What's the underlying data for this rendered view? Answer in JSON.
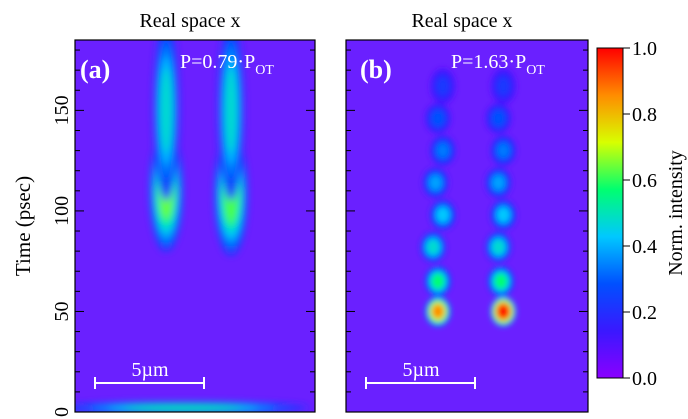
{
  "chart_data": [
    {
      "type": "heatmap",
      "panel_label": "(a)",
      "title": "Real space x",
      "power_label": {
        "prefix": "P=0.79·P",
        "subscript": "OT"
      },
      "ylabel": "Time (psec)",
      "ylim": [
        0,
        185
      ],
      "yticks": [
        0,
        50,
        100,
        150
      ],
      "scale_bar": "5µm",
      "intensity_peaks": [
        {
          "x_frac": 0.38,
          "time": 110,
          "intensity": 0.62,
          "sx": 0.045,
          "st": 20
        },
        {
          "x_frac": 0.65,
          "time": 108,
          "intensity": 0.6,
          "sx": 0.045,
          "st": 20
        },
        {
          "x_frac": 0.38,
          "time": 150,
          "intensity": 0.45,
          "sx": 0.035,
          "st": 30
        },
        {
          "x_frac": 0.65,
          "time": 150,
          "intensity": 0.45,
          "sx": 0.035,
          "st": 30
        },
        {
          "x_frac": 0.45,
          "time": 2,
          "intensity": 0.5,
          "sx": 0.35,
          "st": 2
        }
      ]
    },
    {
      "type": "heatmap",
      "panel_label": "(b)",
      "title": "Real space x",
      "power_label": {
        "prefix": "P=1.63·P",
        "subscript": "OT"
      },
      "ylim": [
        0,
        185
      ],
      "yticks": [
        0,
        50,
        100,
        150
      ],
      "scale_bar": "5µm",
      "intensity_peaks": [
        {
          "x_frac": 0.38,
          "time": 50,
          "intensity": 0.85,
          "sx": 0.035,
          "st": 5
        },
        {
          "x_frac": 0.65,
          "time": 50,
          "intensity": 1.0,
          "sx": 0.035,
          "st": 5
        },
        {
          "x_frac": 0.38,
          "time": 65,
          "intensity": 0.55,
          "sx": 0.035,
          "st": 5
        },
        {
          "x_frac": 0.64,
          "time": 65,
          "intensity": 0.55,
          "sx": 0.035,
          "st": 5
        },
        {
          "x_frac": 0.36,
          "time": 82,
          "intensity": 0.45,
          "sx": 0.035,
          "st": 5
        },
        {
          "x_frac": 0.63,
          "time": 82,
          "intensity": 0.45,
          "sx": 0.035,
          "st": 5
        },
        {
          "x_frac": 0.4,
          "time": 98,
          "intensity": 0.4,
          "sx": 0.035,
          "st": 5
        },
        {
          "x_frac": 0.65,
          "time": 98,
          "intensity": 0.4,
          "sx": 0.035,
          "st": 5
        },
        {
          "x_frac": 0.37,
          "time": 114,
          "intensity": 0.35,
          "sx": 0.035,
          "st": 5
        },
        {
          "x_frac": 0.63,
          "time": 114,
          "intensity": 0.35,
          "sx": 0.035,
          "st": 5
        },
        {
          "x_frac": 0.4,
          "time": 130,
          "intensity": 0.3,
          "sx": 0.035,
          "st": 5
        },
        {
          "x_frac": 0.65,
          "time": 130,
          "intensity": 0.3,
          "sx": 0.035,
          "st": 5
        },
        {
          "x_frac": 0.38,
          "time": 146,
          "intensity": 0.25,
          "sx": 0.035,
          "st": 5
        },
        {
          "x_frac": 0.63,
          "time": 146,
          "intensity": 0.25,
          "sx": 0.035,
          "st": 5
        },
        {
          "x_frac": 0.4,
          "time": 162,
          "intensity": 0.18,
          "sx": 0.035,
          "st": 6
        },
        {
          "x_frac": 0.65,
          "time": 162,
          "intensity": 0.18,
          "sx": 0.035,
          "st": 6
        }
      ]
    }
  ],
  "colorbar": {
    "label": "Norm. intensity",
    "range": [
      0.0,
      1.0
    ],
    "ticks": [
      "0.0",
      "0.2",
      "0.4",
      "0.6",
      "0.8",
      "1.0"
    ],
    "colors": [
      "#8a00ff",
      "#3a18ff",
      "#0050ff",
      "#00c8ff",
      "#00ff70",
      "#d8ff00",
      "#ff8c00",
      "#ff0000"
    ]
  }
}
